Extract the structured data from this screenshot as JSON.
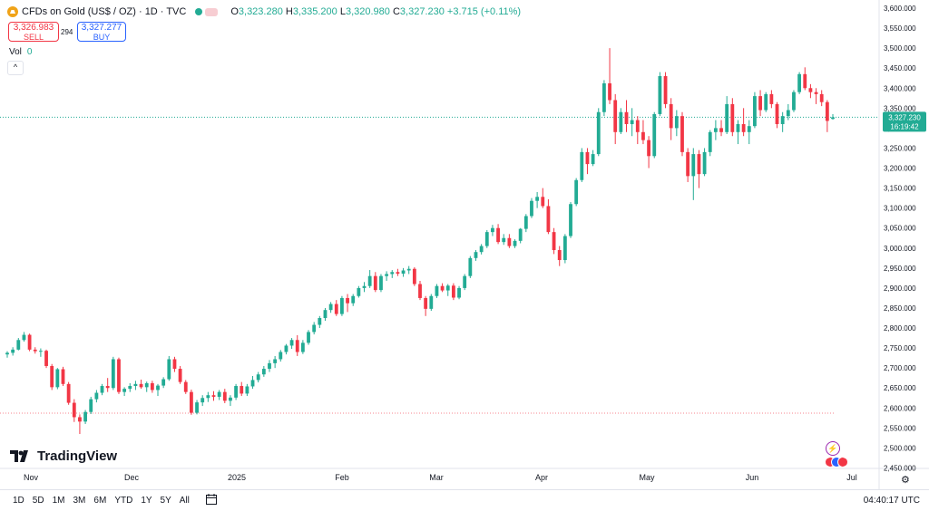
{
  "header": {
    "title": "CFDs on Gold (US$ / OZ) · 1D · TVC",
    "ohlc": {
      "o_label": "O",
      "o": "3,323.280",
      "h_label": "H",
      "h": "3,335.200",
      "l_label": "L",
      "l": "3,320.980",
      "c_label": "C",
      "c": "3,327.230",
      "change": "+3.715 (+0.11%)"
    }
  },
  "trade": {
    "sell_price": "3,326.983",
    "sell_label": "SELL",
    "buy_price": "3,327.277",
    "buy_label": "BUY",
    "spread": "294"
  },
  "volume": {
    "label": "Vol",
    "value": "0"
  },
  "brand": "TradingView",
  "price_tag": {
    "price": "3,327.230",
    "countdown": "16:19:42"
  },
  "toolbar": {
    "timeframes": [
      "1D",
      "5D",
      "1M",
      "3M",
      "6M",
      "YTD",
      "1Y",
      "5Y",
      "All"
    ],
    "clock": "04:40:17 UTC"
  },
  "colors": {
    "up": "#22ab94",
    "down": "#f23645",
    "accent": "#2962ff",
    "gold": "#f0a318"
  },
  "icons": [
    "gold-symbol-icon",
    "collapse-chevron-icon",
    "tradingview-logo-icon",
    "calendar-range-icon",
    "lightning-icon",
    "us-flag-icon",
    "gear-icon"
  ],
  "chart_data": {
    "type": "candlestick",
    "y_axis_ticks": [
      "3,600.000",
      "3,550.000",
      "3,500.000",
      "3,450.000",
      "3,400.000",
      "3,350.000",
      "3,300.000",
      "3,250.000",
      "3,200.000",
      "3,150.000",
      "3,100.000",
      "3,050.000",
      "3,000.000",
      "2,950.000",
      "2,900.000",
      "2,850.000",
      "2,800.000",
      "2,750.000",
      "2,700.000",
      "2,650.000",
      "2,600.000",
      "2,550.000",
      "2,500.000",
      "2,450.000"
    ],
    "x_axis_ticks": [
      "Nov",
      "Dec",
      "2025",
      "Feb",
      "Mar",
      "Apr",
      "May",
      "Jun",
      "Jul"
    ],
    "ylim": [
      2430,
      3615
    ],
    "reference_lines": [
      3327.23,
      2587
    ],
    "candles": [
      [
        2734,
        2742,
        2726,
        2738
      ],
      [
        2738,
        2752,
        2731,
        2746
      ],
      [
        2746,
        2775,
        2744,
        2770
      ],
      [
        2770,
        2790,
        2766,
        2783
      ],
      [
        2783,
        2786,
        2742,
        2746
      ],
      [
        2746,
        2752,
        2736,
        2742
      ],
      [
        2742,
        2749,
        2728,
        2743
      ],
      [
        2743,
        2746,
        2700,
        2705
      ],
      [
        2705,
        2710,
        2645,
        2652
      ],
      [
        2652,
        2700,
        2647,
        2697
      ],
      [
        2697,
        2703,
        2655,
        2660
      ],
      [
        2660,
        2665,
        2608,
        2613
      ],
      [
        2613,
        2622,
        2565,
        2577
      ],
      [
        2577,
        2584,
        2535,
        2566
      ],
      [
        2566,
        2595,
        2560,
        2590
      ],
      [
        2590,
        2628,
        2585,
        2622
      ],
      [
        2622,
        2645,
        2614,
        2638
      ],
      [
        2638,
        2660,
        2632,
        2655
      ],
      [
        2655,
        2675,
        2640,
        2650
      ],
      [
        2650,
        2728,
        2645,
        2722
      ],
      [
        2722,
        2726,
        2635,
        2640
      ],
      [
        2640,
        2652,
        2630,
        2648
      ],
      [
        2648,
        2662,
        2640,
        2655
      ],
      [
        2655,
        2668,
        2645,
        2660
      ],
      [
        2660,
        2671,
        2648,
        2652
      ],
      [
        2652,
        2666,
        2640,
        2662
      ],
      [
        2662,
        2668,
        2638,
        2645
      ],
      [
        2645,
        2660,
        2630,
        2656
      ],
      [
        2656,
        2677,
        2650,
        2672
      ],
      [
        2672,
        2730,
        2668,
        2722
      ],
      [
        2722,
        2728,
        2690,
        2698
      ],
      [
        2698,
        2705,
        2660,
        2665
      ],
      [
        2665,
        2670,
        2635,
        2640
      ],
      [
        2640,
        2646,
        2583,
        2588
      ],
      [
        2588,
        2620,
        2584,
        2614
      ],
      [
        2614,
        2632,
        2605,
        2625
      ],
      [
        2625,
        2640,
        2615,
        2632
      ],
      [
        2632,
        2642,
        2618,
        2628
      ],
      [
        2628,
        2645,
        2620,
        2640
      ],
      [
        2640,
        2648,
        2612,
        2618
      ],
      [
        2618,
        2632,
        2605,
        2626
      ],
      [
        2626,
        2660,
        2620,
        2655
      ],
      [
        2655,
        2665,
        2630,
        2636
      ],
      [
        2636,
        2660,
        2630,
        2654
      ],
      [
        2654,
        2680,
        2648,
        2670
      ],
      [
        2670,
        2690,
        2664,
        2684
      ],
      [
        2684,
        2705,
        2678,
        2698
      ],
      [
        2698,
        2720,
        2690,
        2712
      ],
      [
        2712,
        2730,
        2700,
        2722
      ],
      [
        2722,
        2745,
        2716,
        2740
      ],
      [
        2740,
        2760,
        2734,
        2756
      ],
      [
        2756,
        2775,
        2748,
        2770
      ],
      [
        2770,
        2782,
        2730,
        2740
      ],
      [
        2740,
        2770,
        2735,
        2763
      ],
      [
        2763,
        2795,
        2758,
        2790
      ],
      [
        2790,
        2815,
        2784,
        2808
      ],
      [
        2808,
        2830,
        2800,
        2825
      ],
      [
        2825,
        2850,
        2818,
        2845
      ],
      [
        2845,
        2865,
        2838,
        2860
      ],
      [
        2860,
        2870,
        2830,
        2835
      ],
      [
        2835,
        2880,
        2830,
        2875
      ],
      [
        2875,
        2885,
        2840,
        2862
      ],
      [
        2862,
        2885,
        2855,
        2880
      ],
      [
        2880,
        2905,
        2876,
        2900
      ],
      [
        2900,
        2915,
        2890,
        2905
      ],
      [
        2905,
        2945,
        2900,
        2930
      ],
      [
        2930,
        2940,
        2890,
        2895
      ],
      [
        2895,
        2935,
        2890,
        2930
      ],
      [
        2930,
        2942,
        2918,
        2935
      ],
      [
        2935,
        2945,
        2925,
        2940
      ],
      [
        2940,
        2948,
        2930,
        2936
      ],
      [
        2936,
        2950,
        2928,
        2944
      ],
      [
        2944,
        2955,
        2935,
        2948
      ],
      [
        2948,
        2952,
        2905,
        2910
      ],
      [
        2910,
        2918,
        2870,
        2875
      ],
      [
        2875,
        2880,
        2830,
        2848
      ],
      [
        2848,
        2885,
        2843,
        2880
      ],
      [
        2880,
        2910,
        2875,
        2905
      ],
      [
        2905,
        2912,
        2890,
        2894
      ],
      [
        2894,
        2910,
        2880,
        2906
      ],
      [
        2906,
        2912,
        2870,
        2876
      ],
      [
        2876,
        2905,
        2872,
        2900
      ],
      [
        2900,
        2935,
        2895,
        2930
      ],
      [
        2930,
        2980,
        2925,
        2975
      ],
      [
        2975,
        2995,
        2968,
        2990
      ],
      [
        2990,
        3010,
        2984,
        3005
      ],
      [
        3005,
        3045,
        3000,
        3040
      ],
      [
        3040,
        3058,
        3030,
        3050
      ],
      [
        3050,
        3060,
        3010,
        3015
      ],
      [
        3015,
        3035,
        3008,
        3025
      ],
      [
        3025,
        3035,
        3000,
        3005
      ],
      [
        3005,
        3022,
        3000,
        3018
      ],
      [
        3018,
        3050,
        3012,
        3048
      ],
      [
        3048,
        3085,
        3040,
        3080
      ],
      [
        3080,
        3125,
        3075,
        3118
      ],
      [
        3118,
        3140,
        3100,
        3128
      ],
      [
        3128,
        3150,
        3100,
        3105
      ],
      [
        3105,
        3122,
        3035,
        3040
      ],
      [
        3040,
        3050,
        2985,
        2995
      ],
      [
        2995,
        3005,
        2955,
        2970
      ],
      [
        2970,
        3035,
        2962,
        3030
      ],
      [
        3030,
        3115,
        3025,
        3110
      ],
      [
        3110,
        3175,
        3105,
        3170
      ],
      [
        3170,
        3250,
        3165,
        3240
      ],
      [
        3240,
        3250,
        3185,
        3210
      ],
      [
        3210,
        3245,
        3205,
        3235
      ],
      [
        3235,
        3350,
        3230,
        3340
      ],
      [
        3340,
        3420,
        3330,
        3412
      ],
      [
        3412,
        3500,
        3360,
        3370
      ],
      [
        3370,
        3385,
        3260,
        3290
      ],
      [
        3290,
        3350,
        3285,
        3340
      ],
      [
        3340,
        3370,
        3290,
        3310
      ],
      [
        3310,
        3350,
        3280,
        3320
      ],
      [
        3320,
        3330,
        3260,
        3290
      ],
      [
        3290,
        3320,
        3260,
        3270
      ],
      [
        3270,
        3280,
        3200,
        3230
      ],
      [
        3230,
        3340,
        3225,
        3335
      ],
      [
        3335,
        3440,
        3330,
        3430
      ],
      [
        3430,
        3440,
        3350,
        3360
      ],
      [
        3360,
        3375,
        3270,
        3300
      ],
      [
        3300,
        3345,
        3280,
        3330
      ],
      [
        3330,
        3340,
        3230,
        3240
      ],
      [
        3240,
        3250,
        3165,
        3180
      ],
      [
        3180,
        3250,
        3120,
        3235
      ],
      [
        3235,
        3245,
        3150,
        3185
      ],
      [
        3185,
        3250,
        3180,
        3240
      ],
      [
        3240,
        3295,
        3230,
        3290
      ],
      [
        3290,
        3320,
        3270,
        3300
      ],
      [
        3300,
        3320,
        3280,
        3290
      ],
      [
        3290,
        3380,
        3285,
        3360
      ],
      [
        3360,
        3375,
        3280,
        3290
      ],
      [
        3290,
        3320,
        3260,
        3310
      ],
      [
        3310,
        3350,
        3280,
        3290
      ],
      [
        3290,
        3320,
        3260,
        3305
      ],
      [
        3305,
        3390,
        3300,
        3380
      ],
      [
        3380,
        3395,
        3330,
        3345
      ],
      [
        3345,
        3390,
        3340,
        3385
      ],
      [
        3385,
        3395,
        3350,
        3360
      ],
      [
        3360,
        3365,
        3300,
        3310
      ],
      [
        3310,
        3340,
        3290,
        3330
      ],
      [
        3330,
        3360,
        3320,
        3345
      ],
      [
        3345,
        3395,
        3340,
        3390
      ],
      [
        3390,
        3440,
        3385,
        3435
      ],
      [
        3435,
        3452,
        3395,
        3400
      ],
      [
        3400,
        3410,
        3375,
        3390
      ],
      [
        3390,
        3400,
        3360,
        3385
      ],
      [
        3385,
        3395,
        3355,
        3365
      ],
      [
        3365,
        3370,
        3290,
        3318
      ],
      [
        3323,
        3335,
        3321,
        3327
      ]
    ]
  }
}
